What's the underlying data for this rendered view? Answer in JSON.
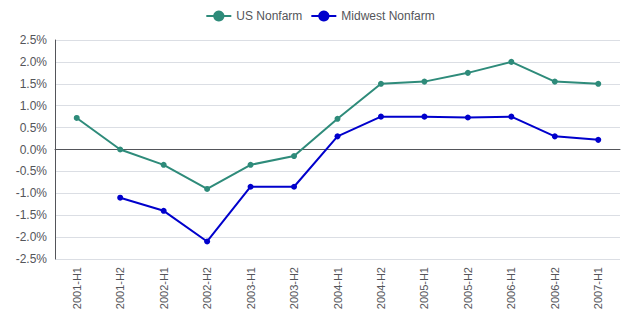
{
  "chart_data": {
    "type": "line",
    "categories": [
      "2001-H1",
      "2001-H2",
      "2002-H1",
      "2002-H2",
      "2003-H1",
      "2003-H2",
      "2004-H1",
      "2004-H2",
      "2005-H1",
      "2005-H2",
      "2006-H1",
      "2006-H2",
      "2007-H1"
    ],
    "series": [
      {
        "name": "US Nonfarm",
        "color": "#2e8b7a",
        "values": [
          0.72,
          0.0,
          -0.35,
          -0.9,
          -0.35,
          -0.15,
          0.7,
          1.5,
          1.55,
          1.75,
          2.0,
          1.55,
          1.5
        ]
      },
      {
        "name": "Midwest Nonfarm",
        "color": "#0000cc",
        "values": [
          null,
          -1.1,
          -1.4,
          -2.1,
          -0.85,
          -0.85,
          0.3,
          0.75,
          0.75,
          0.73,
          0.75,
          0.3,
          0.22
        ]
      }
    ],
    "ylim": [
      -2.5,
      2.5
    ],
    "yticks": [
      {
        "value": -2.5,
        "label": "-2.5%"
      },
      {
        "value": -2.0,
        "label": "-2.0%"
      },
      {
        "value": -1.5,
        "label": "-1.5%"
      },
      {
        "value": -1.0,
        "label": "-1.0%"
      },
      {
        "value": -0.5,
        "label": "-0.5%"
      },
      {
        "value": 0.0,
        "label": "0.0%"
      },
      {
        "value": 0.5,
        "label": "0.5%"
      },
      {
        "value": 1.0,
        "label": "1.0%"
      },
      {
        "value": 1.5,
        "label": "1.5%"
      },
      {
        "value": 2.0,
        "label": "2.0%"
      },
      {
        "value": 2.5,
        "label": "2.5%"
      }
    ],
    "grid": true,
    "legend": "top",
    "marker": "circle"
  }
}
